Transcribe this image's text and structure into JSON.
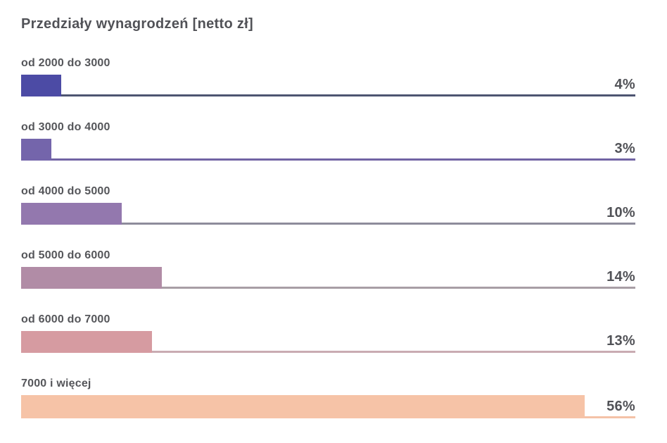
{
  "title": "Przedziały wynagrodzeń [netto zł]",
  "colors": {
    "background": "#ffffff",
    "text": "#515257"
  },
  "chart_data": {
    "type": "bar",
    "orientation": "horizontal",
    "title": "Przedziały wynagrodzeń [netto zł]",
    "xlabel": "",
    "ylabel": "",
    "xlim": [
      0,
      61
    ],
    "grid": false,
    "legend": "none",
    "categories": [
      "od 2000 do 3000",
      "od 3000 do 4000",
      "od 4000 do 5000",
      "od 5000 do 6000",
      "od 6000 do 7000",
      "7000 i więcej"
    ],
    "values": [
      4,
      3,
      10,
      14,
      13,
      56
    ],
    "rows": [
      {
        "label": "od 2000 do 3000",
        "value": 4,
        "value_label": "4%",
        "bar_color": "#4c4ba5",
        "line_color": "#4d5571"
      },
      {
        "label": "od 3000 do 4000",
        "value": 3,
        "value_label": "3%",
        "bar_color": "#7465ab",
        "line_color": "#7164a4"
      },
      {
        "label": "od 4000 do 5000",
        "value": 10,
        "value_label": "10%",
        "bar_color": "#9378ae",
        "line_color": "#8e8c9b"
      },
      {
        "label": "od 5000 do 6000",
        "value": 14,
        "value_label": "14%",
        "bar_color": "#b18ca6",
        "line_color": "#a89ea5"
      },
      {
        "label": "od 6000 do 7000",
        "value": 13,
        "value_label": "13%",
        "bar_color": "#d69ba1",
        "line_color": "#c9abb2"
      },
      {
        "label": "7000 i więcej",
        "value": 56,
        "value_label": "56%",
        "bar_color": "#f6c3a7",
        "line_color": "#f4c2a7"
      }
    ]
  }
}
